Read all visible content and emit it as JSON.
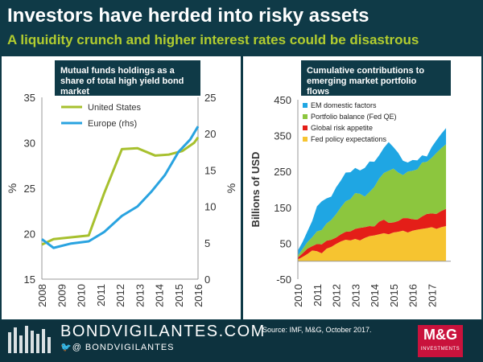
{
  "header": {
    "title": "Investors have herded into risky assets",
    "subtitle": "A liquidity crunch and higher interest rates could be disastrous"
  },
  "chart_data": [
    {
      "type": "line",
      "title": "Mutual funds holdings as a share of total high yield bond market",
      "x": [
        "2008",
        "2009",
        "2010",
        "2011",
        "2012",
        "2013",
        "2014",
        "2015",
        "2016"
      ],
      "xlim": [
        2008,
        2016
      ],
      "ylabel": "%",
      "ylim": [
        15,
        35
      ],
      "yticks": [
        15,
        20,
        25,
        30,
        35
      ],
      "y2label": "%",
      "y2lim": [
        0,
        25
      ],
      "y2ticks": [
        0,
        5,
        10,
        15,
        20,
        25
      ],
      "grid": false,
      "legend_position": "top-left",
      "series": [
        {
          "name": "United States",
          "axis": "left",
          "color": "#a7c02e",
          "x": [
            2008,
            2008.6,
            2009.5,
            2010.4,
            2011.2,
            2012.1,
            2012.9,
            2013.8,
            2014.5,
            2015.2,
            2015.8,
            2016
          ],
          "values": [
            18.8,
            19.4,
            19.6,
            19.8,
            24.5,
            29.3,
            29.4,
            28.6,
            28.7,
            29.1,
            30.0,
            30.6
          ]
        },
        {
          "name": "Europe (rhs)",
          "axis": "right",
          "color": "#29a3e0",
          "x": [
            2008,
            2008.6,
            2009.5,
            2010.4,
            2011.2,
            2012.1,
            2012.9,
            2013.6,
            2014.3,
            2015.0,
            2015.6,
            2016
          ],
          "values": [
            5.5,
            4.3,
            4.9,
            5.2,
            6.5,
            8.7,
            10.0,
            12.0,
            14.3,
            17.5,
            19.2,
            21.0
          ]
        }
      ]
    },
    {
      "type": "area",
      "title": "Cumulative contributions to emerging market portfolio flows",
      "ylabel": "Billions of USD",
      "ylim": [
        -50,
        450
      ],
      "yticks": [
        -50,
        50,
        150,
        250,
        350,
        450
      ],
      "xticks": [
        "2010",
        "2011",
        "2012",
        "2013",
        "2014",
        "2015",
        "2016",
        "2017"
      ],
      "xlim": [
        2010,
        2018
      ],
      "stacked": true,
      "grid": false,
      "legend_position": "top-left",
      "x": [
        2010.0,
        2010.25,
        2010.5,
        2010.75,
        2011.0,
        2011.25,
        2011.5,
        2011.75,
        2012.0,
        2012.25,
        2012.5,
        2012.75,
        2013.0,
        2013.25,
        2013.5,
        2013.75,
        2014.0,
        2014.25,
        2014.5,
        2014.75,
        2015.0,
        2015.25,
        2015.5,
        2015.75,
        2016.0,
        2016.25,
        2016.5,
        2016.75,
        2017.0,
        2017.25,
        2017.5,
        2017.75
      ],
      "series": [
        {
          "name": "Fed policy expectations",
          "color": "#f6c430",
          "values": [
            5,
            12,
            20,
            30,
            28,
            22,
            35,
            40,
            48,
            55,
            60,
            58,
            62,
            58,
            65,
            70,
            72,
            75,
            78,
            75,
            80,
            82,
            85,
            80,
            85,
            88,
            90,
            92,
            95,
            90,
            95,
            98
          ]
        },
        {
          "name": "Global risk appetite",
          "color": "#e41e18",
          "values": [
            5,
            10,
            15,
            12,
            20,
            25,
            22,
            20,
            18,
            20,
            22,
            25,
            28,
            35,
            30,
            28,
            25,
            35,
            38,
            32,
            28,
            30,
            35,
            40,
            32,
            28,
            35,
            40,
            38,
            42,
            45,
            48
          ]
        },
        {
          "name": "Portfolio balance (Fed QE)",
          "color": "#8cc63e",
          "values": [
            5,
            12,
            18,
            25,
            35,
            40,
            48,
            55,
            65,
            75,
            85,
            90,
            100,
            95,
            85,
            95,
            110,
            120,
            130,
            145,
            150,
            135,
            120,
            130,
            135,
            140,
            150,
            145,
            155,
            170,
            175,
            180
          ]
        },
        {
          "name": "EM domestic factors",
          "color": "#1fa6e3",
          "values": [
            15,
            20,
            30,
            45,
            70,
            80,
            70,
            65,
            75,
            75,
            80,
            75,
            70,
            65,
            80,
            85,
            70,
            65,
            70,
            80,
            60,
            55,
            40,
            25,
            30,
            25,
            20,
            15,
            30,
            35,
            40,
            45
          ]
        }
      ]
    }
  ],
  "footer": {
    "brand": "BONDVIGILANTES.COM",
    "handle": "@ BONDVIGILANTES",
    "source": "Source: IMF, M&G, October 2017.",
    "logo_text": "M&G",
    "logo_sub": "INVESTMENTS"
  },
  "colors": {
    "background": "#0f3a47",
    "panel": "#ffffff",
    "subtitle_accent": "#b2cd2f",
    "logo_red": "#c9123c"
  }
}
